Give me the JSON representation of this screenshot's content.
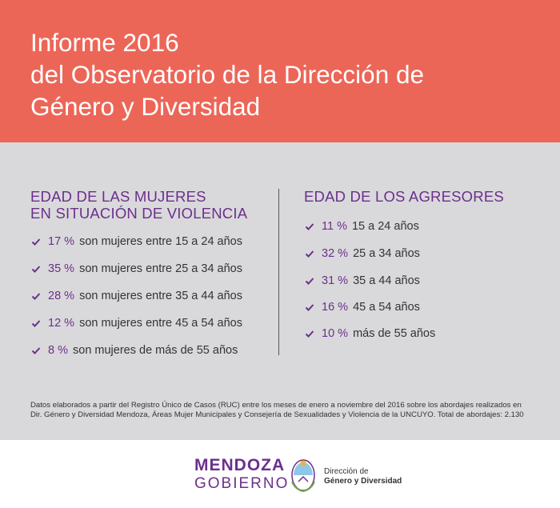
{
  "header": {
    "title_lines": [
      "Informe 2016",
      "del Observatorio de la Dirección de",
      "Género y Diversidad"
    ]
  },
  "left": {
    "heading_lines": [
      "EDAD DE LAS MUJERES",
      "EN SITUACIÓN DE VIOLENCIA"
    ],
    "items": [
      {
        "pct": "17 %",
        "text": "son mujeres entre  15 a 24 años"
      },
      {
        "pct": "35 %",
        "text": "son mujeres entre  25 a 34 años"
      },
      {
        "pct": "28 %",
        "text": "son mujeres entre 35 a 44 años"
      },
      {
        "pct": "12 %",
        "text": "son mujeres entre  45  a 54 años"
      },
      {
        "pct": "8 %",
        "text": " son mujeres de  más de 55 años"
      }
    ]
  },
  "right": {
    "heading": "EDAD DE LOS AGRESORES",
    "items": [
      {
        "pct": "11 %",
        "text": "15 a 24 años"
      },
      {
        "pct": "32 %",
        "text": "25 a 34 años"
      },
      {
        "pct": "31 %",
        "text": "35 a 44 años"
      },
      {
        "pct": "16 %",
        "text": "45 a 54 años"
      },
      {
        "pct": "10 %",
        "text": "más de 55 años"
      }
    ]
  },
  "footnote": "Datos elaborados a partir  del Registro Único de Casos (RUC) entre los meses de  enero a noviembre del  2016 sobre los abordajes realizados en Dir. Género y Diversidad Mendoza,  Áreas Mujer Municipales y  Consejería de Sexualidades y Violencia de la UNCUYO. Total de abordajes:  2.130",
  "footer": {
    "brand_top": "MENDOZA",
    "brand_bottom": "GOBIERNO",
    "org_line1": "Dirección de",
    "org_line2": "Género y Diversidad"
  },
  "colors": {
    "header_bg": "#ec6658",
    "panel_bg": "#d9d9db",
    "accent_purple": "#6c2f8c"
  },
  "icons": {
    "bullet": "check-icon",
    "seal": "coat-of-arms-icon"
  }
}
